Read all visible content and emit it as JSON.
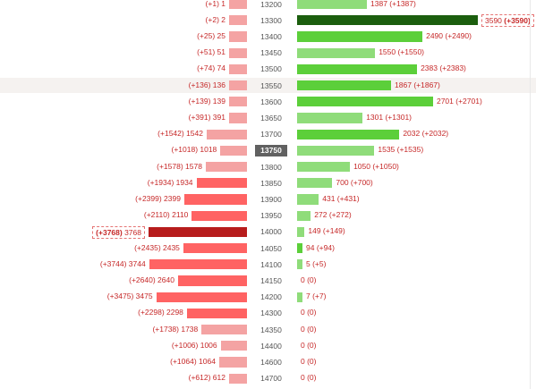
{
  "chart_data": {
    "type": "bar",
    "orientation": "horizontal-butterfly",
    "current_strike": "13750",
    "max_value": 3768,
    "colors": {
      "put_light": "#f4a3a3",
      "put_mid": "#ff6363",
      "put_max": "#b71c1c",
      "call_light": "#8fdc7a",
      "call_mid": "#5ccf3a",
      "call_max": "#1b5e0e",
      "strike_highlight_bg": "#616161",
      "row_highlight": "#f5f2f0"
    },
    "rows": [
      {
        "strike": "13200",
        "put": 1,
        "put_label": "(+1) 1",
        "put_shade": "light",
        "call": 1387,
        "call_label": "1387 (+1387)",
        "call_shade": "light"
      },
      {
        "strike": "13300",
        "put": 2,
        "put_label": "(+2) 2",
        "put_shade": "light",
        "call": 3590,
        "call_label": "3590 ",
        "call_change_bold": "(+3590)",
        "call_shade": "max",
        "call_boxed": true
      },
      {
        "strike": "13400",
        "put": 25,
        "put_label": "(+25) 25",
        "put_shade": "light",
        "call": 2490,
        "call_label": "2490 (+2490)",
        "call_shade": "mid"
      },
      {
        "strike": "13450",
        "put": 51,
        "put_label": "(+51) 51",
        "put_shade": "light",
        "call": 1550,
        "call_label": "1550 (+1550)",
        "call_shade": "light"
      },
      {
        "strike": "13500",
        "put": 74,
        "put_label": "(+74) 74",
        "put_shade": "light",
        "call": 2383,
        "call_label": "2383 (+2383)",
        "call_shade": "mid"
      },
      {
        "strike": "13550",
        "put": 136,
        "put_label": "(+136) 136",
        "put_shade": "light",
        "call": 1867,
        "call_label": "1867 (+1867)",
        "call_shade": "mid",
        "highlight": true
      },
      {
        "strike": "13600",
        "put": 139,
        "put_label": "(+139) 139",
        "put_shade": "light",
        "call": 2701,
        "call_label": "2701 (+2701)",
        "call_shade": "mid"
      },
      {
        "strike": "13650",
        "put": 391,
        "put_label": "(+391) 391",
        "put_shade": "light",
        "call": 1301,
        "call_label": "1301 (+1301)",
        "call_shade": "light"
      },
      {
        "strike": "13700",
        "put": 1542,
        "put_label": "(+1542) 1542",
        "put_shade": "light",
        "call": 2032,
        "call_label": "2032 (+2032)",
        "call_shade": "mid"
      },
      {
        "strike": "13750",
        "put": 1018,
        "put_label": "(+1018) 1018",
        "put_shade": "light",
        "call": 1535,
        "call_label": "1535 (+1535)",
        "call_shade": "light",
        "current": true
      },
      {
        "strike": "13800",
        "put": 1578,
        "put_label": "(+1578) 1578",
        "put_shade": "light",
        "call": 1050,
        "call_label": "1050 (+1050)",
        "call_shade": "light"
      },
      {
        "strike": "13850",
        "put": 1934,
        "put_label": "(+1934) 1934",
        "put_shade": "mid",
        "call": 700,
        "call_label": "700 (+700)",
        "call_shade": "light"
      },
      {
        "strike": "13900",
        "put": 2399,
        "put_label": "(+2399) 2399",
        "put_shade": "mid",
        "call": 431,
        "call_label": "431 (+431)",
        "call_shade": "light"
      },
      {
        "strike": "13950",
        "put": 2110,
        "put_label": "(+2110) 2110",
        "put_shade": "mid",
        "call": 272,
        "call_label": "272 (+272)",
        "call_shade": "light"
      },
      {
        "strike": "14000",
        "put": 3768,
        "put_label": " 3768",
        "put_change_bold": "(+3768)",
        "put_shade": "max",
        "put_boxed": true,
        "call": 149,
        "call_label": "149 (+149)",
        "call_shade": "light"
      },
      {
        "strike": "14050",
        "put": 2435,
        "put_label": "(+2435) 2435",
        "put_shade": "mid",
        "call": 94,
        "call_label": "94 (+94)",
        "call_shade": "mid"
      },
      {
        "strike": "14100",
        "put": 3744,
        "put_label": "(+3744) 3744",
        "put_shade": "mid",
        "call": 5,
        "call_label": "5 (+5)",
        "call_shade": "light"
      },
      {
        "strike": "14150",
        "put": 2640,
        "put_label": "(+2640) 2640",
        "put_shade": "mid",
        "call": 0,
        "call_label": "0 (0)",
        "call_shade": "none"
      },
      {
        "strike": "14200",
        "put": 3475,
        "put_label": "(+3475) 3475",
        "put_shade": "mid",
        "call": 7,
        "call_label": "7 (+7)",
        "call_shade": "light"
      },
      {
        "strike": "14300",
        "put": 2298,
        "put_label": "(+2298) 2298",
        "put_shade": "mid",
        "call": 0,
        "call_label": "0 (0)",
        "call_shade": "none"
      },
      {
        "strike": "14350",
        "put": 1738,
        "put_label": "(+1738) 1738",
        "put_shade": "light",
        "call": 0,
        "call_label": "0 (0)",
        "call_shade": "none"
      },
      {
        "strike": "14400",
        "put": 1006,
        "put_label": "(+1006) 1006",
        "put_shade": "light",
        "call": 0,
        "call_label": "0 (0)",
        "call_shade": "none"
      },
      {
        "strike": "14600",
        "put": 1064,
        "put_label": "(+1064) 1064",
        "put_shade": "light",
        "call": 0,
        "call_label": "0 (0)",
        "call_shade": "none"
      },
      {
        "strike": "14700",
        "put": 612,
        "put_label": "(+612) 612",
        "put_shade": "light",
        "call": 0,
        "call_label": "0 (0)",
        "call_shade": "none"
      }
    ]
  }
}
